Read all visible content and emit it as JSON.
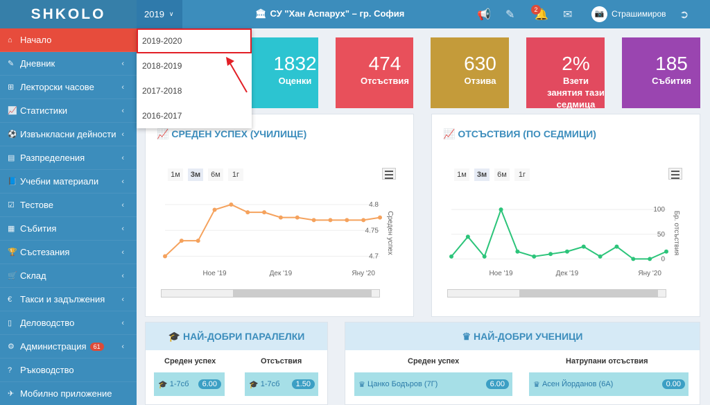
{
  "header": {
    "logo": "SHKOLO",
    "year": "2019",
    "school": "СУ \"Хан Аспарух\" – гр. София",
    "notification_count": "2",
    "user": "Страшимиров"
  },
  "year_dropdown": [
    "2019-2020",
    "2018-2019",
    "2017-2018",
    "2016-2017"
  ],
  "sidebar": {
    "items": [
      {
        "label": "Начало",
        "icon": "home-icon",
        "glyph": "⌂"
      },
      {
        "label": "Дневник",
        "icon": "edit-icon",
        "glyph": "✎"
      },
      {
        "label": "Лекторски часове",
        "icon": "plus-square-icon",
        "glyph": "⊞"
      },
      {
        "label": "Статистики",
        "icon": "line-chart-icon",
        "glyph": "📈"
      },
      {
        "label": "Извънкласни дейности",
        "icon": "soccer-ball-icon",
        "glyph": "⚽"
      },
      {
        "label": "Разпределения",
        "icon": "list-icon",
        "glyph": "▤"
      },
      {
        "label": "Учебни материали",
        "icon": "book-icon",
        "glyph": "📘"
      },
      {
        "label": "Тестове",
        "icon": "check-square-icon",
        "glyph": "☑"
      },
      {
        "label": "Събития",
        "icon": "calendar-icon",
        "glyph": "▦"
      },
      {
        "label": "Състезания",
        "icon": "trophy-icon",
        "glyph": "🏆"
      },
      {
        "label": "Склад",
        "icon": "cart-icon",
        "glyph": "🛒"
      },
      {
        "label": "Такси и задължения",
        "icon": "euro-icon",
        "glyph": "€"
      },
      {
        "label": "Деловодство",
        "icon": "file-icon",
        "glyph": "▯"
      },
      {
        "label": "Администрация",
        "icon": "cogs-icon",
        "glyph": "⚙"
      },
      {
        "label": "Ръководство",
        "icon": "question-icon",
        "glyph": "?"
      },
      {
        "label": "Мобилно приложение",
        "icon": "paper-plane-icon",
        "glyph": "✈"
      }
    ],
    "admin_badge": "61"
  },
  "tiles": [
    {
      "value": "1832",
      "label": "Оценки",
      "color": "#2cc4d1"
    },
    {
      "value": "474",
      "label": "Отсъствия",
      "color": "#e8505b"
    },
    {
      "value": "630",
      "label": "Отзива",
      "color": "#c49b3a"
    },
    {
      "value": "2%",
      "label": "Взети занятия тази седмица",
      "color": "#e24a5f"
    },
    {
      "value": "185",
      "label": "Събития",
      "color": "#9a45b0"
    }
  ],
  "zoom_labels": [
    "1м",
    "3м",
    "6м",
    "1г"
  ],
  "chart_data": [
    {
      "type": "line",
      "title": "СРЕДЕН УСПЕХ (УЧИЛИЩЕ)",
      "ylabel": "Среден успех",
      "x_ticks": [
        "Ное '19",
        "Дек '19",
        "Яну '20"
      ],
      "y_ticks": [
        "4.7",
        "4.75",
        "4.8"
      ],
      "color": "#f5a25d",
      "values": [
        4.7,
        4.73,
        4.73,
        4.79,
        4.8,
        4.785,
        4.785,
        4.775,
        4.775,
        4.77,
        4.77,
        4.77,
        4.77,
        4.775
      ]
    },
    {
      "type": "line",
      "title": "ОТСЪСТВИЯ (ПО СЕДМИЦИ)",
      "ylabel": "Бр. отсъствия",
      "x_ticks": [
        "Ное '19",
        "Дек '19",
        "Яну '20"
      ],
      "y_ticks": [
        "0",
        "50",
        "100"
      ],
      "color": "#2cc47a",
      "values": [
        5,
        45,
        5,
        100,
        15,
        5,
        10,
        15,
        25,
        5,
        25,
        0,
        0,
        15
      ]
    }
  ],
  "best_classes": {
    "title": "НАЙ-ДОБРИ ПАРАЛЕЛКИ",
    "col1": "Среден успех",
    "col2": "Отсъствия",
    "row1_name": "1-7сб",
    "row1_value": "6.00",
    "row2_name": "1-7сб",
    "row2_value": "1.50"
  },
  "best_students": {
    "title": "НАЙ-ДОБРИ УЧЕНИЦИ",
    "col1": "Среден успех",
    "col2": "Натрупани отсъствия",
    "row1_name": "Цанко Бодъров (7Г)",
    "row1_value": "6.00",
    "row2_name": "Асен Йорданов (6А)",
    "row2_value": "0.00"
  }
}
